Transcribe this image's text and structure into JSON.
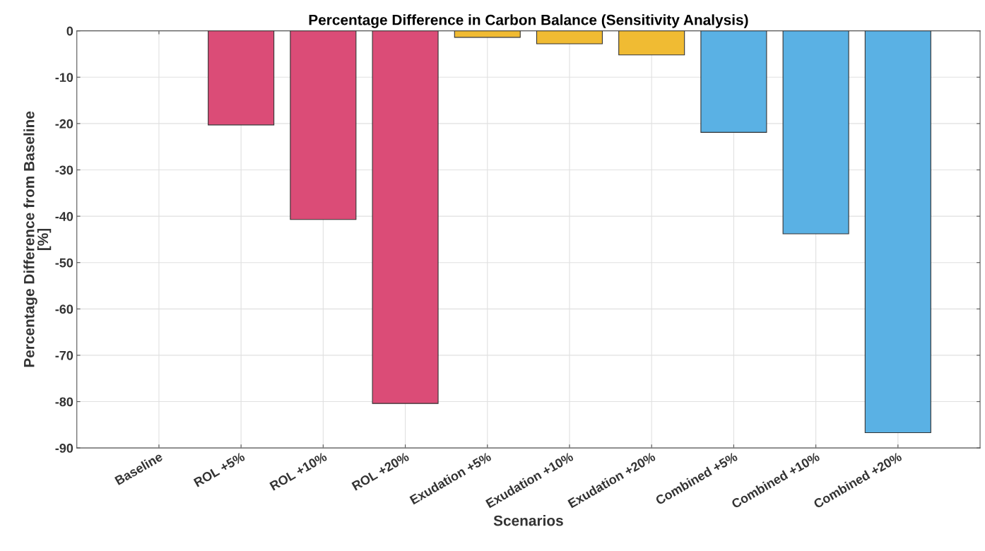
{
  "chart_data": {
    "type": "bar",
    "title": "Percentage Difference in Carbon Balance (Sensitivity Analysis)",
    "xlabel": "Scenarios",
    "ylabel": "Percentage Difference from Baseline\n[%]",
    "categories": [
      "Baseline",
      "ROL +5%",
      "ROL +10%",
      "ROL +20%",
      "Exudation +5%",
      "Exudation +10%",
      "Exudation +20%",
      "Combined +5%",
      "Combined +10%",
      "Combined +20%"
    ],
    "values": [
      0,
      -20.3,
      -40.7,
      -80.4,
      -1.4,
      -2.8,
      -5.2,
      -21.9,
      -43.8,
      -86.7
    ],
    "colors": [
      null,
      "#db4c77",
      "#db4c77",
      "#db4c77",
      "#f0bb33",
      "#f0bb33",
      "#f0bb33",
      "#5ab1e4",
      "#5ab1e4",
      "#5ab1e4"
    ],
    "ylim": [
      -90,
      0
    ],
    "yticks": [
      -90,
      -80,
      -70,
      -60,
      -50,
      -40,
      -30,
      -20,
      -10,
      0
    ],
    "grid": true
  }
}
